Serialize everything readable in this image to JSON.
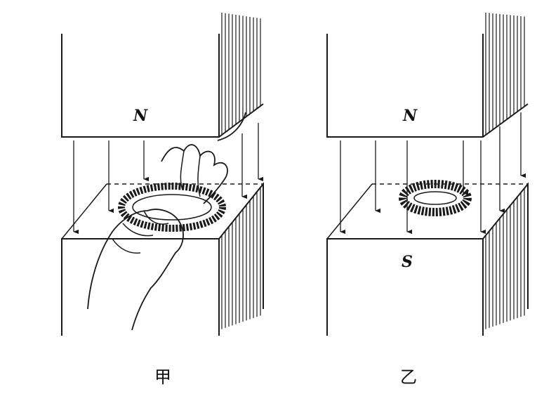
{
  "figures": [
    {
      "id": "jia",
      "top_pole": "N",
      "bottom_pole": "",
      "caption": "甲"
    },
    {
      "id": "yi",
      "top_pole": "N",
      "bottom_pole": "S",
      "caption": "乙"
    }
  ],
  "colors": {
    "ink": "#1a1a1a",
    "paper": "#ffffff"
  },
  "icons": [
    "magnet-north-pole",
    "magnet-south-pole",
    "field-line-arrow",
    "toroidal-coil",
    "hand"
  ]
}
